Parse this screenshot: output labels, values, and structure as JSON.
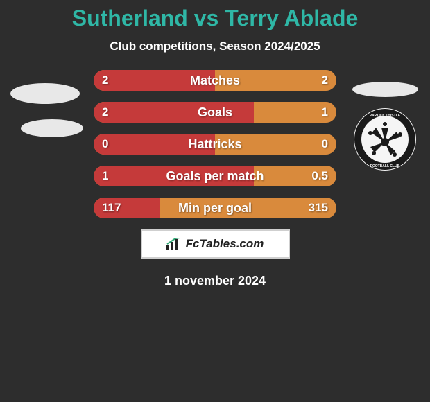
{
  "title_color": "#2fb7a6",
  "text_color": "#ffffff",
  "background_color": "#2d2d2d",
  "title": "Sutherland vs Terry Ablade",
  "subtitle": "Club competitions, Season 2024/2025",
  "date": "1 november 2024",
  "footer": "FcTables.com",
  "footer_box_border": "#cfcfcf",
  "footer_box_bg": "#ffffff",
  "footer_text_color": "#222222",
  "left_ellipse_color": "#e8e8e8",
  "right_ellipse_color": "#e8e8e8",
  "crest_bg": "#f2f2f2",
  "crest_ring": "#1a1a1a",
  "row_bg_color": "#d98a3c",
  "row_fill_color": "#c53a3a",
  "row_text_color": "#ffffff",
  "rows": [
    {
      "label": "Matches",
      "left": "2",
      "right": "2",
      "left_pct": 50
    },
    {
      "label": "Goals",
      "left": "2",
      "right": "1",
      "left_pct": 66
    },
    {
      "label": "Hattricks",
      "left": "0",
      "right": "0",
      "left_pct": 50
    },
    {
      "label": "Goals per match",
      "left": "1",
      "right": "0.5",
      "left_pct": 66
    },
    {
      "label": "Min per goal",
      "left": "117",
      "right": "315",
      "left_pct": 27
    }
  ]
}
